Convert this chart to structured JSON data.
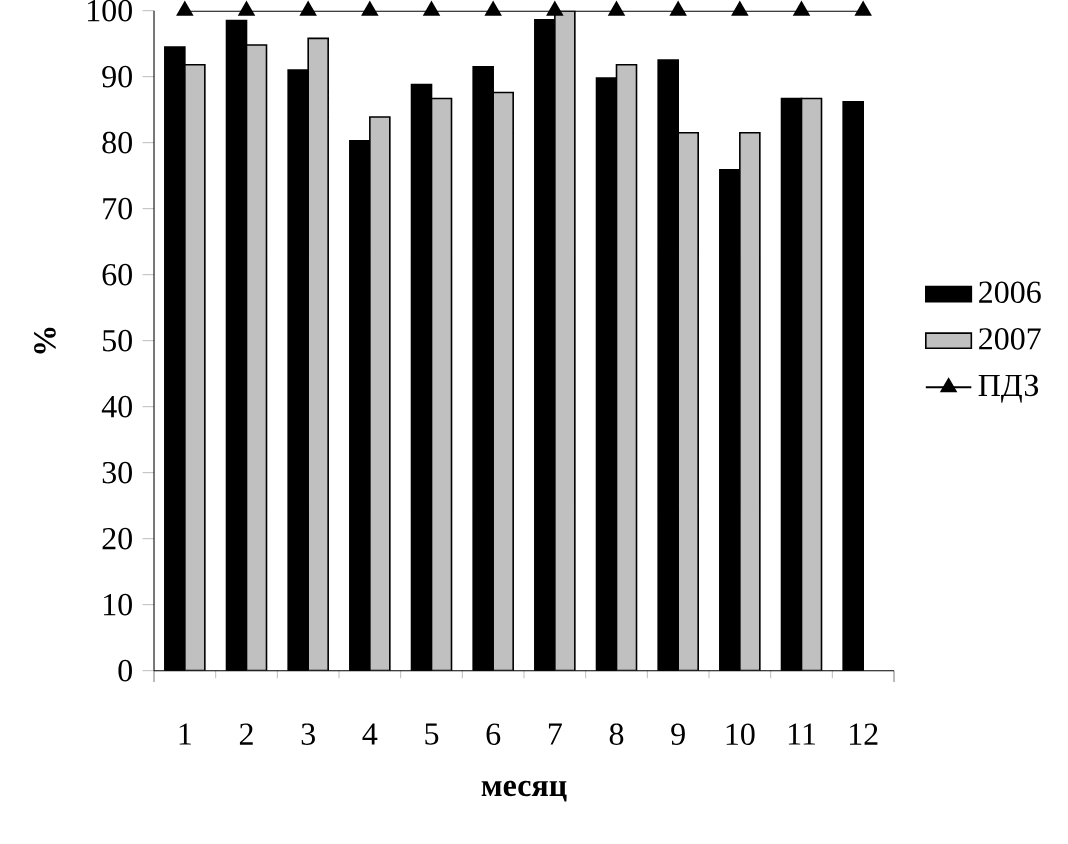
{
  "chart_data": {
    "type": "bar",
    "xlabel": "месяц",
    "ylabel": "%",
    "categories": [
      "1",
      "2",
      "3",
      "4",
      "5",
      "6",
      "7",
      "8",
      "9",
      "10",
      "11",
      "12"
    ],
    "series": [
      {
        "name": "2006",
        "color": "#000000",
        "values": [
          94.5,
          98.5,
          91.0,
          80.3,
          88.8,
          91.5,
          98.6,
          89.8,
          92.5,
          75.9,
          86.7,
          86.2
        ]
      },
      {
        "name": "2007",
        "color": "#c0c0c0",
        "values": [
          91.8,
          94.8,
          95.8,
          83.9,
          86.7,
          87.6,
          100,
          91.8,
          81.5,
          81.5,
          86.7,
          null
        ]
      },
      {
        "name": "ПДЗ",
        "type": "line",
        "color": "#000000",
        "marker": "triangle",
        "values": [
          100,
          100,
          100,
          100,
          100,
          100,
          100,
          100,
          100,
          100,
          100,
          100
        ]
      }
    ],
    "ylim": [
      0,
      100
    ],
    "yticks": [
      0,
      10,
      20,
      30,
      40,
      50,
      60,
      70,
      80,
      90,
      100
    ],
    "legend": "right"
  }
}
